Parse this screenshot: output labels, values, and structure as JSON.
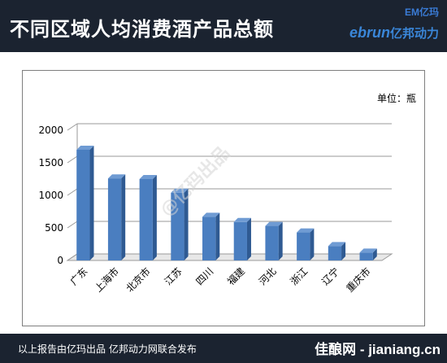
{
  "header": {
    "title": "不同区域人均消费酒产品总额",
    "brand_top": "EM亿玛",
    "brand_latin": "ebrun",
    "brand_cn": "亿邦动力"
  },
  "unit_label": "单位：瓶",
  "watermark": "@亿玛出品",
  "footer": {
    "text": "以上报告由亿玛出品  亿邦动力网联合发布",
    "site": "佳酿网 - jianiang.cn"
  },
  "colors": {
    "bar_front": "#4a7ec0",
    "bar_side": "#2f5a92",
    "bar_top": "#6f9bd3",
    "header_bg": "#1b2330"
  },
  "chart_data": {
    "type": "bar",
    "categories": [
      "广东",
      "上海市",
      "北京市",
      "江苏",
      "四川",
      "福建",
      "河北",
      "浙江",
      "辽宁",
      "重庆市"
    ],
    "values": [
      1700,
      1260,
      1250,
      1040,
      670,
      590,
      530,
      430,
      220,
      120
    ],
    "ylim": [
      0,
      2000
    ],
    "yticks": [
      0,
      500,
      1000,
      1500,
      2000
    ],
    "grid": true
  }
}
